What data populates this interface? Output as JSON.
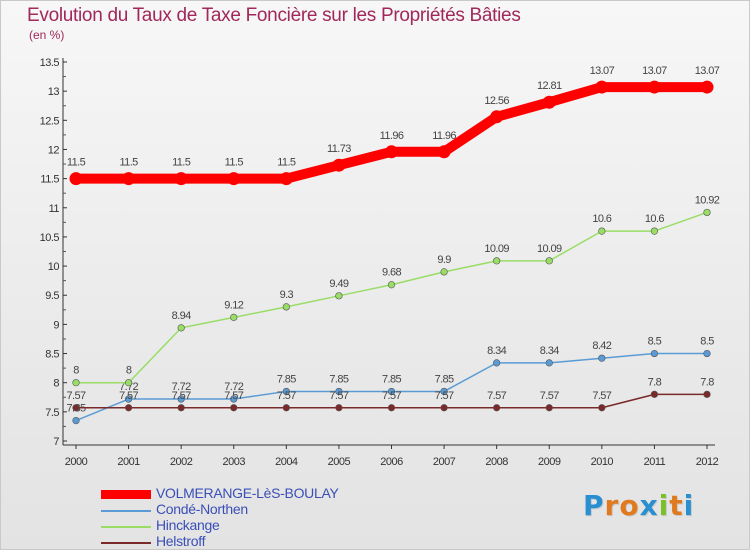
{
  "title": "Evolution du Taux de Taxe Foncière sur les Propriétés Bâties",
  "subtitle": "(en %)",
  "brand": {
    "text": "Proxiti",
    "letter_colors": [
      "#2a8fd0",
      "#e07a1f",
      "#e07a1f",
      "#2a8fd0",
      "#7bbf2a",
      "#e07a1f",
      "#2a8fd0"
    ]
  },
  "chart_data": {
    "type": "line",
    "x": [
      "2000",
      "2001",
      "2002",
      "2003",
      "2004",
      "2005",
      "2006",
      "2007",
      "2008",
      "2009",
      "2010",
      "2011",
      "2012"
    ],
    "ylim": [
      7,
      13.5
    ],
    "yticks": [
      "7",
      "7.5",
      "8",
      "8.5",
      "9",
      "9.5",
      "10",
      "10.5",
      "11",
      "11.5",
      "12",
      "12.5",
      "13",
      "13.5"
    ],
    "grid": false,
    "legend_position": "bottom-left",
    "series": [
      {
        "name": "VOLMERANGE-LèS-BOULAY",
        "color": "#ff0000",
        "values": [
          11.5,
          11.5,
          11.5,
          11.5,
          11.5,
          11.73,
          11.96,
          11.96,
          12.56,
          12.81,
          13.07,
          13.07,
          13.07
        ],
        "labels": [
          "11.5",
          "11.5",
          "11.5",
          "11.5",
          "11.5",
          "11.73",
          "11.96",
          "11.96",
          "12.56",
          "12.81",
          "13.07",
          "13.07",
          "13.07"
        ]
      },
      {
        "name": "Condé-Northen",
        "color": "#5a9bd5",
        "values": [
          7.35,
          7.72,
          7.72,
          7.72,
          7.85,
          7.85,
          7.85,
          7.85,
          8.34,
          8.34,
          8.42,
          8.5,
          8.5
        ],
        "labels": [
          "7.35",
          "7.72",
          "7.72",
          "7.72",
          "7.85",
          "7.85",
          "7.85",
          "7.85",
          "8.34",
          "8.34",
          "8.42",
          "8.5",
          "8.5"
        ]
      },
      {
        "name": "Hinckange",
        "color": "#99dd66",
        "values": [
          8,
          8,
          8.94,
          9.12,
          9.3,
          9.49,
          9.68,
          9.9,
          10.09,
          10.09,
          10.6,
          10.6,
          10.92
        ],
        "labels": [
          "8",
          "8",
          "8.94",
          "9.12",
          "9.3",
          "9.49",
          "9.68",
          "9.9",
          "10.09",
          "10.09",
          "10.6",
          "10.6",
          "10.92"
        ]
      },
      {
        "name": "Helstroff",
        "color": "#7a2a2a",
        "values": [
          7.57,
          7.57,
          7.57,
          7.57,
          7.57,
          7.57,
          7.57,
          7.57,
          7.57,
          7.57,
          7.57,
          7.8,
          7.8
        ],
        "labels": [
          "7.57",
          "7.57",
          "7.57",
          "7.57",
          "7.57",
          "7.57",
          "7.57",
          "7.57",
          "7.57",
          "7.57",
          "7.57",
          "7.8",
          "7.8"
        ]
      }
    ]
  }
}
